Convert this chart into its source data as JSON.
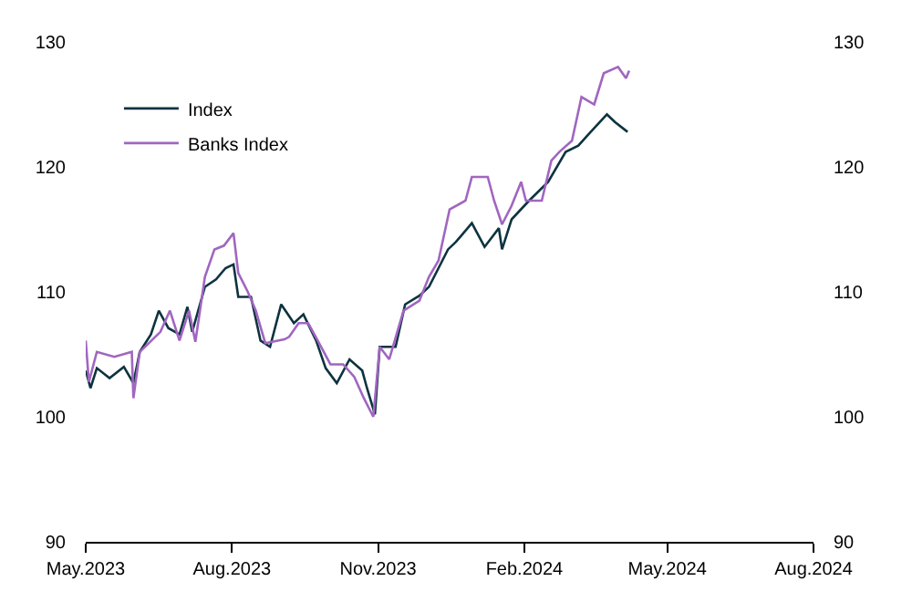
{
  "chart_data": {
    "type": "line",
    "series": [
      {
        "name": "Index",
        "color": "#0d3340",
        "x": [
          "2023-05-01",
          "2023-05-04",
          "2023-05-08",
          "2023-05-16",
          "2023-05-25",
          "2023-05-31",
          "2023-06-04",
          "2023-06-11",
          "2023-06-16",
          "2023-06-22",
          "2023-06-29",
          "2023-07-04",
          "2023-07-07",
          "2023-07-15",
          "2023-07-22",
          "2023-07-28",
          "2023-08-02",
          "2023-08-05",
          "2023-08-13",
          "2023-08-19",
          "2023-08-25",
          "2023-09-01",
          "2023-09-09",
          "2023-09-15",
          "2023-09-23",
          "2023-09-29",
          "2023-10-06",
          "2023-10-14",
          "2023-10-22",
          "2023-10-25",
          "2023-10-30",
          "2023-11-02",
          "2023-11-12",
          "2023-11-18",
          "2023-11-27",
          "2023-12-03",
          "2023-12-15",
          "2023-12-20",
          "2023-12-30",
          "2024-01-07",
          "2024-01-16",
          "2024-01-18",
          "2024-01-24",
          "2024-02-04",
          "2024-02-16",
          "2024-02-27",
          "2024-03-06",
          "2024-03-13",
          "2024-03-24",
          "2024-03-29",
          "2024-04-06"
        ],
        "values": [
          103.7,
          102.3,
          103.9,
          103.1,
          104,
          102.7,
          105.2,
          106.6,
          108.5,
          107.1,
          106.6,
          108.8,
          106.8,
          110.4,
          111,
          111.9,
          112.2,
          109.6,
          109.6,
          106.1,
          105.6,
          109,
          107.5,
          108.2,
          106.1,
          103.9,
          102.7,
          104.6,
          103.7,
          102.3,
          100.2,
          105.6,
          105.6,
          109,
          109.7,
          110.4,
          113.4,
          114,
          115.5,
          113.6,
          115.1,
          113.4,
          115.8,
          117.3,
          118.8,
          121.2,
          121.7,
          122.7,
          124.2,
          123.6,
          122.8
        ]
      },
      {
        "name": "Banks Index",
        "color": "#a066c0",
        "axis": "y2",
        "x": [
          "2023-05-01",
          "2023-05-03",
          "2023-05-08",
          "2023-05-19",
          "2023-05-30",
          "2023-05-31",
          "2023-06-04",
          "2023-06-17",
          "2023-06-23",
          "2023-06-29",
          "2023-07-05",
          "2023-07-09",
          "2023-07-15",
          "2023-07-21",
          "2023-07-27",
          "2023-08-02",
          "2023-08-05",
          "2023-08-11",
          "2023-08-16",
          "2023-08-22",
          "2023-09-03",
          "2023-09-06",
          "2023-09-12",
          "2023-09-18",
          "2023-09-24",
          "2023-10-02",
          "2023-10-10",
          "2023-10-17",
          "2023-10-23",
          "2023-10-29",
          "2023-11-02",
          "2023-11-08",
          "2023-11-17",
          "2023-11-27",
          "2023-12-03",
          "2023-12-09",
          "2023-12-16",
          "2023-12-26",
          "2023-12-30",
          "2024-01-09",
          "2024-01-13",
          "2024-01-18",
          "2024-01-24",
          "2024-01-30",
          "2024-02-02",
          "2024-02-12",
          "2024-02-18",
          "2024-02-23",
          "2024-03-02",
          "2024-03-08",
          "2024-03-16",
          "2024-03-22",
          "2024-03-31",
          "2024-04-05",
          "2024-04-07"
        ],
        "values": [
          106.1,
          102.8,
          105.2,
          104.8,
          105.2,
          101.5,
          105.2,
          106.8,
          108.5,
          106.1,
          108.5,
          106,
          111.2,
          113.4,
          113.7,
          114.7,
          111.5,
          110,
          108.5,
          105.9,
          106.2,
          106.4,
          107.5,
          107.5,
          106.1,
          104.2,
          104.2,
          103.2,
          101.5,
          100,
          105.6,
          104.6,
          108.5,
          109.3,
          111.2,
          112.5,
          116.6,
          117.3,
          119.2,
          119.2,
          117.3,
          115.4,
          116.9,
          118.8,
          117.3,
          117.3,
          120.5,
          121.2,
          122.1,
          125.6,
          125,
          127.5,
          128,
          127.1,
          127.7
        ]
      }
    ],
    "xlim": [
      "2023-05-01",
      "2024-08-01"
    ],
    "xticks": [
      {
        "value": "2023-05-01",
        "label": "May.2023"
      },
      {
        "value": "2023-08-01",
        "label": "Aug.2023"
      },
      {
        "value": "2023-11-01",
        "label": "Nov.2023"
      },
      {
        "value": "2024-02-01",
        "label": "Feb.2024"
      },
      {
        "value": "2024-05-01",
        "label": "May.2024"
      },
      {
        "value": "2024-08-01",
        "label": "Aug.2024"
      }
    ],
    "ylim": [
      90,
      130
    ],
    "yticks": [
      90,
      100,
      110,
      120,
      130
    ],
    "y2lim": [
      90,
      130
    ],
    "y2ticks": [
      90,
      100,
      110,
      120,
      130
    ],
    "legend": "top left",
    "marker": "none",
    "line_style": "solid"
  }
}
